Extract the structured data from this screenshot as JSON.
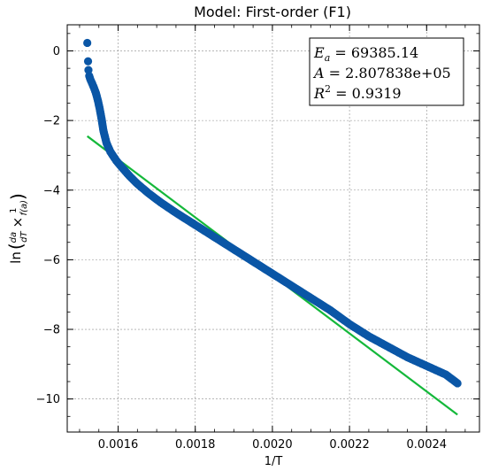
{
  "chart_data": {
    "type": "scatter",
    "title": "Model: First-order (F1)",
    "xlabel": "1/T",
    "ylabel": "ln(da/dT × 1/f(a))",
    "xlim": [
      0.001468,
      0.002537
    ],
    "ylim": [
      -10.95,
      0.75
    ],
    "x_ticks": [
      0.0016,
      0.0018,
      0.002,
      0.0022,
      0.0024
    ],
    "x_tick_labels": [
      "0.0016",
      "0.0018",
      "0.0020",
      "0.0022",
      "0.0024"
    ],
    "y_ticks": [
      0,
      -2,
      -4,
      -6,
      -8,
      -10
    ],
    "y_tick_labels": [
      "0",
      "−2",
      "−4",
      "−6",
      "−8",
      "−10"
    ],
    "grid": true,
    "colors": {
      "points": "#0a56a6",
      "fit_line": "#14b83a"
    },
    "data_points": [
      {
        "x": 0.00152,
        "y": 0.23
      },
      {
        "x": 0.001522,
        "y": -0.3
      },
      {
        "x": 0.001523,
        "y": -0.55
      },
      {
        "x": 0.001525,
        "y": -0.72
      },
      {
        "x": 0.001528,
        "y": -0.82
      },
      {
        "x": 0.001532,
        "y": -0.92
      },
      {
        "x": 0.001537,
        "y": -1.05
      },
      {
        "x": 0.001542,
        "y": -1.2
      },
      {
        "x": 0.001547,
        "y": -1.4
      },
      {
        "x": 0.001552,
        "y": -1.65
      },
      {
        "x": 0.001557,
        "y": -1.95
      },
      {
        "x": 0.001562,
        "y": -2.3
      },
      {
        "x": 0.00157,
        "y": -2.65
      },
      {
        "x": 0.00158,
        "y": -2.9
      },
      {
        "x": 0.001595,
        "y": -3.15
      },
      {
        "x": 0.00161,
        "y": -3.35
      },
      {
        "x": 0.00163,
        "y": -3.6
      },
      {
        "x": 0.00165,
        "y": -3.82
      },
      {
        "x": 0.00168,
        "y": -4.1
      },
      {
        "x": 0.00171,
        "y": -4.35
      },
      {
        "x": 0.00175,
        "y": -4.65
      },
      {
        "x": 0.0018,
        "y": -5.0
      },
      {
        "x": 0.00185,
        "y": -5.35
      },
      {
        "x": 0.0019,
        "y": -5.7
      },
      {
        "x": 0.00195,
        "y": -6.05
      },
      {
        "x": 0.002,
        "y": -6.4
      },
      {
        "x": 0.00205,
        "y": -6.75
      },
      {
        "x": 0.0021,
        "y": -7.1
      },
      {
        "x": 0.00215,
        "y": -7.45
      },
      {
        "x": 0.0022,
        "y": -7.85
      },
      {
        "x": 0.00225,
        "y": -8.2
      },
      {
        "x": 0.0023,
        "y": -8.5
      },
      {
        "x": 0.00235,
        "y": -8.8
      },
      {
        "x": 0.0024,
        "y": -9.05
      },
      {
        "x": 0.00245,
        "y": -9.3
      },
      {
        "x": 0.00248,
        "y": -9.55
      }
    ],
    "fit_line": [
      {
        "x": 0.00152,
        "y": -2.45
      },
      {
        "x": 0.00248,
        "y": -10.45
      }
    ],
    "annotation": {
      "ea_value": "69385.14",
      "a_value": "2.807838e+05",
      "r2_value": "0.9319"
    }
  }
}
